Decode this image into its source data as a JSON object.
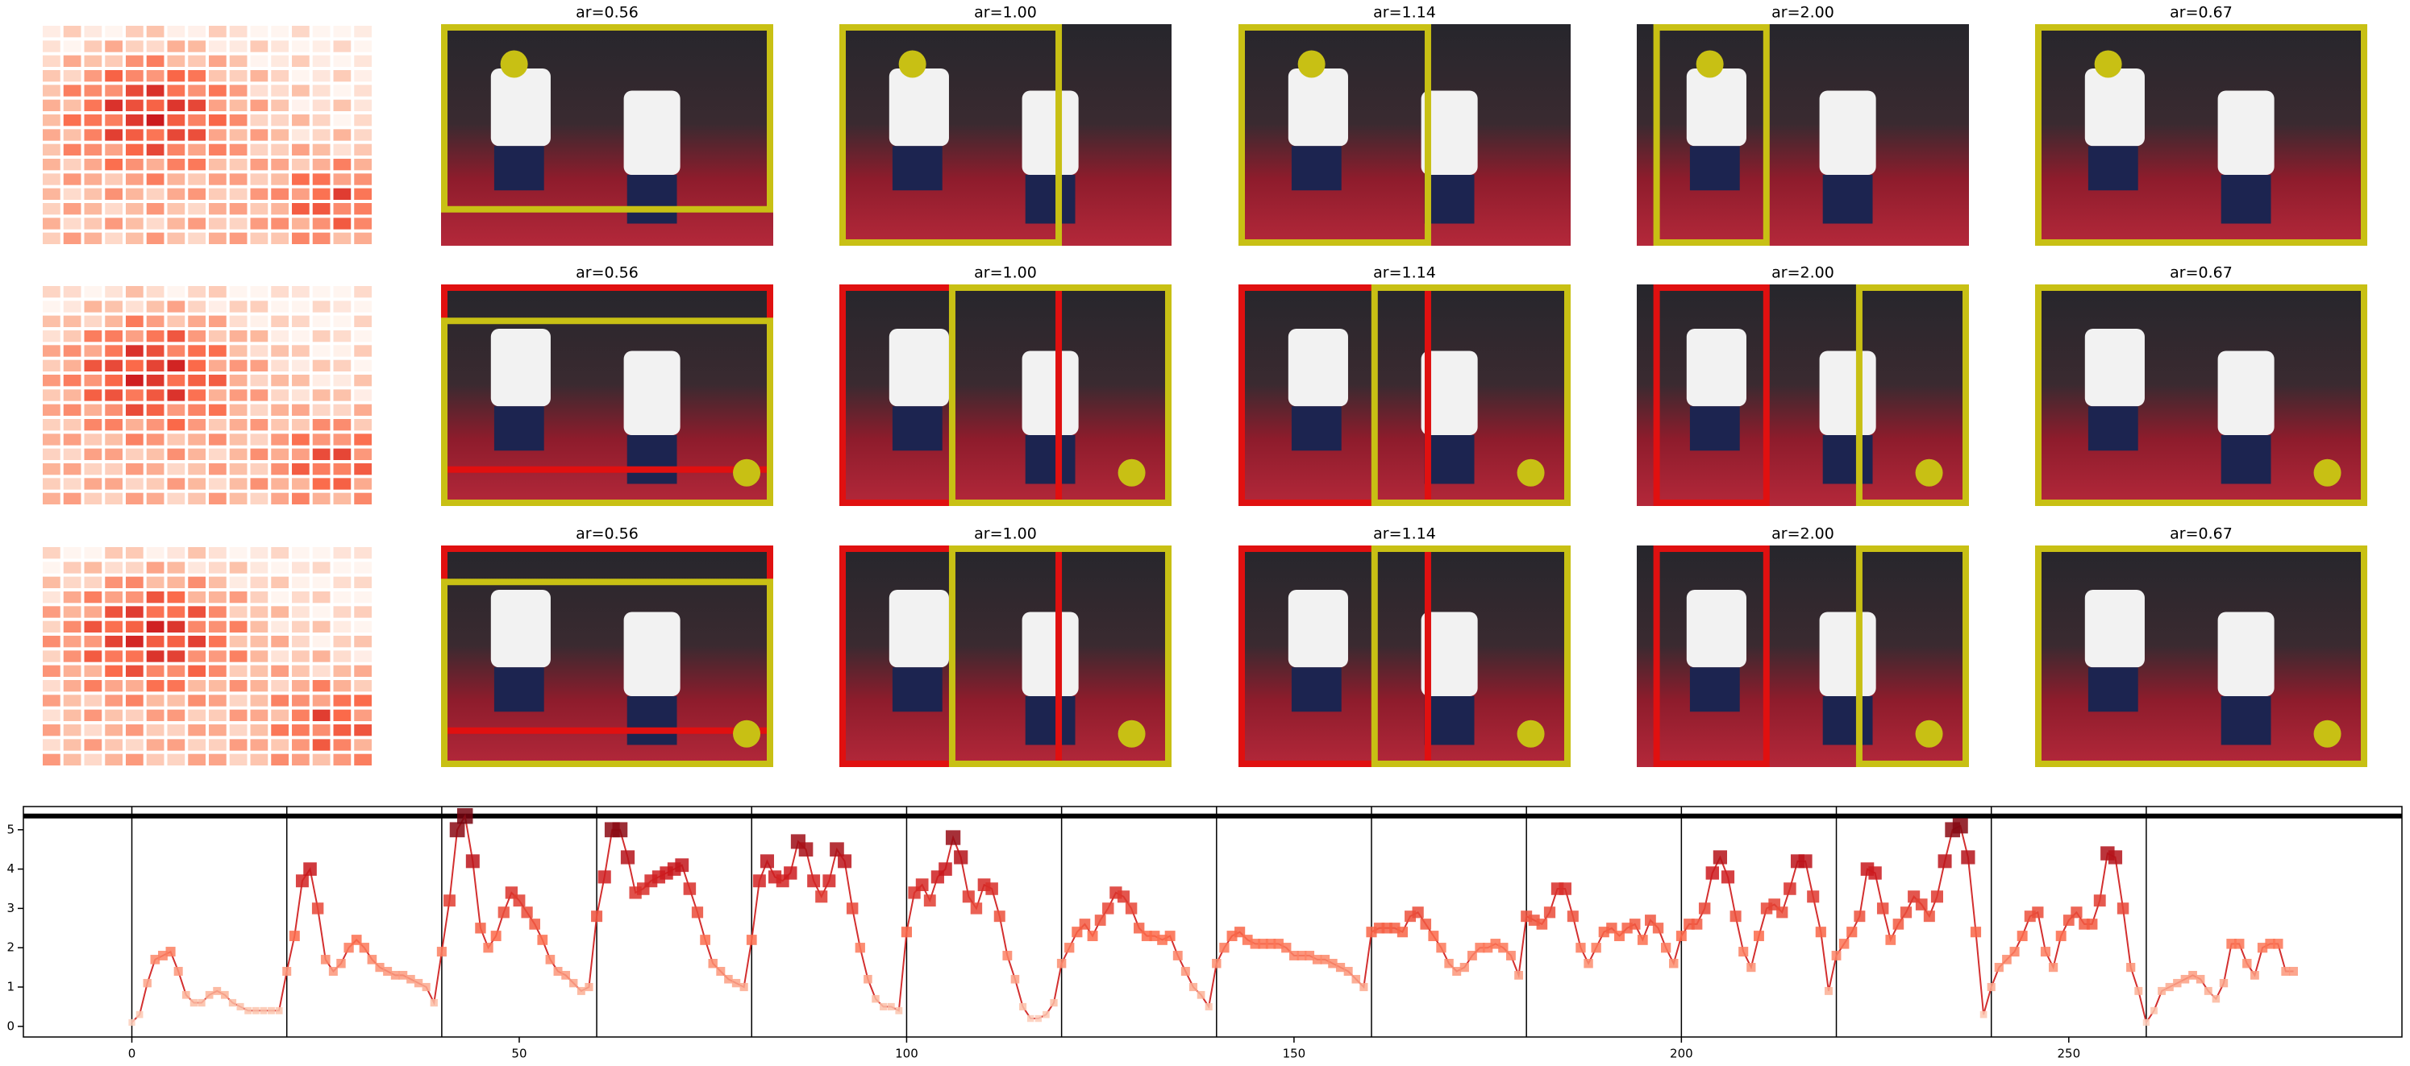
{
  "panels": {
    "titles": [
      [
        "ar=0.56",
        "ar=1.00",
        "ar=1.14",
        "ar=2.00",
        "ar=0.67"
      ],
      [
        "ar=0.56",
        "ar=1.00",
        "ar=1.14",
        "ar=2.00",
        "ar=0.67"
      ],
      [
        "ar=0.56",
        "ar=1.00",
        "ar=1.14",
        "ar=2.00",
        "ar=0.67"
      ]
    ]
  },
  "chart_data": {
    "type": "line",
    "color": "#d32f2f",
    "cmap": "Reds",
    "x": [
      0,
      1,
      2,
      3,
      4,
      5,
      6,
      7,
      8,
      9,
      10,
      11,
      12,
      13,
      14,
      15,
      16,
      17,
      18,
      19,
      20,
      21,
      22,
      23,
      24,
      25,
      26,
      27,
      28,
      29,
      30,
      31,
      32,
      33,
      34,
      35,
      36,
      37,
      38,
      39,
      40,
      41,
      42,
      43,
      44,
      45,
      46,
      47,
      48,
      49,
      50,
      51,
      52,
      53,
      54,
      55,
      56,
      57,
      58,
      59,
      60,
      61,
      62,
      63,
      64,
      65,
      66,
      67,
      68,
      69,
      70,
      71,
      72,
      73,
      74,
      75,
      76,
      77,
      78,
      79,
      80,
      81,
      82,
      83,
      84,
      85,
      86,
      87,
      88,
      89,
      90,
      91,
      92,
      93,
      94,
      95,
      96,
      97,
      98,
      99,
      100,
      101,
      102,
      103,
      104,
      105,
      106,
      107,
      108,
      109,
      110,
      111,
      112,
      113,
      114,
      115,
      116,
      117,
      118,
      119,
      120,
      121,
      122,
      123,
      124,
      125,
      126,
      127,
      128,
      129,
      130,
      131,
      132,
      133,
      134,
      135,
      136,
      137,
      138,
      139,
      140,
      141,
      142,
      143,
      144,
      145,
      146,
      147,
      148,
      149,
      150,
      151,
      152,
      153,
      154,
      155,
      156,
      157,
      158,
      159,
      160,
      161,
      162,
      163,
      164,
      165,
      166,
      167,
      168,
      169,
      170,
      171,
      172,
      173,
      174,
      175,
      176,
      177,
      178,
      179,
      180,
      181,
      182,
      183,
      184,
      185,
      186,
      187,
      188,
      189,
      190,
      191,
      192,
      193,
      194,
      195,
      196,
      197,
      198,
      199,
      200,
      201,
      202,
      203,
      204,
      205,
      206,
      207,
      208,
      209,
      210,
      211,
      212,
      213,
      214,
      215,
      216,
      217,
      218,
      219,
      220,
      221,
      222,
      223,
      224,
      225,
      226,
      227,
      228,
      229,
      230,
      231,
      232,
      233,
      234,
      235,
      236,
      237,
      238,
      239,
      240,
      241,
      242,
      243,
      244,
      245,
      246,
      247,
      248,
      249,
      250,
      251,
      252,
      253,
      254,
      255,
      256,
      257,
      258,
      259,
      260,
      261,
      262,
      263,
      264,
      265,
      266,
      267,
      268,
      269,
      270,
      271,
      272,
      273,
      274,
      275,
      276,
      277,
      278,
      279
    ],
    "values": [
      0.1,
      0.3,
      1.1,
      1.7,
      1.8,
      1.9,
      1.4,
      0.8,
      0.6,
      0.6,
      0.8,
      0.9,
      0.8,
      0.6,
      0.5,
      0.4,
      0.4,
      0.4,
      0.4,
      0.4,
      1.4,
      2.3,
      3.7,
      4.0,
      3.0,
      1.7,
      1.4,
      1.6,
      2.0,
      2.2,
      2.0,
      1.7,
      1.5,
      1.4,
      1.3,
      1.3,
      1.2,
      1.1,
      1.0,
      0.6,
      1.9,
      3.2,
      5.0,
      5.35,
      4.2,
      2.5,
      2.0,
      2.3,
      2.9,
      3.4,
      3.2,
      2.9,
      2.6,
      2.2,
      1.7,
      1.4,
      1.3,
      1.1,
      0.9,
      1.0,
      2.8,
      3.8,
      5.0,
      5.0,
      4.3,
      3.4,
      3.5,
      3.7,
      3.8,
      3.9,
      4.0,
      4.1,
      3.5,
      2.9,
      2.2,
      1.6,
      1.4,
      1.2,
      1.1,
      1.0,
      2.2,
      3.7,
      4.2,
      3.8,
      3.7,
      3.9,
      4.7,
      4.5,
      3.7,
      3.3,
      3.7,
      4.5,
      4.2,
      3.0,
      2.0,
      1.2,
      0.7,
      0.5,
      0.5,
      0.4,
      2.4,
      3.4,
      3.6,
      3.2,
      3.8,
      4.0,
      4.8,
      4.3,
      3.3,
      3.0,
      3.6,
      3.5,
      2.8,
      1.8,
      1.2,
      0.5,
      0.2,
      0.2,
      0.3,
      0.6,
      1.6,
      2.0,
      2.4,
      2.6,
      2.3,
      2.7,
      3.0,
      3.4,
      3.3,
      3.0,
      2.5,
      2.3,
      2.3,
      2.2,
      2.3,
      1.8,
      1.4,
      1.0,
      0.8,
      0.5,
      1.6,
      2.0,
      2.3,
      2.4,
      2.2,
      2.1,
      2.1,
      2.1,
      2.1,
      2.0,
      1.8,
      1.8,
      1.8,
      1.7,
      1.7,
      1.6,
      1.5,
      1.4,
      1.2,
      1.0,
      2.4,
      2.5,
      2.5,
      2.5,
      2.4,
      2.8,
      2.9,
      2.6,
      2.3,
      2.0,
      1.6,
      1.4,
      1.5,
      1.8,
      2.0,
      2.0,
      2.1,
      2.0,
      1.8,
      1.3,
      2.8,
      2.7,
      2.6,
      2.9,
      3.5,
      3.5,
      2.8,
      2.0,
      1.6,
      2.0,
      2.4,
      2.5,
      2.3,
      2.5,
      2.6,
      2.2,
      2.7,
      2.5,
      2.0,
      1.6,
      2.3,
      2.6,
      2.6,
      3.0,
      3.9,
      4.3,
      3.8,
      2.8,
      1.9,
      1.5,
      2.3,
      3.0,
      3.1,
      2.9,
      3.5,
      4.2,
      4.2,
      3.3,
      2.4,
      0.9,
      1.8,
      2.1,
      2.4,
      2.8,
      4.0,
      3.9,
      3.0,
      2.2,
      2.6,
      2.9,
      3.3,
      3.1,
      2.8,
      3.3,
      4.2,
      5.0,
      5.1,
      4.3,
      2.4,
      0.3,
      1.0,
      1.5,
      1.7,
      1.9,
      2.3,
      2.8,
      2.9,
      1.9,
      1.5,
      2.3,
      2.7,
      2.9,
      2.6,
      2.6,
      3.2,
      4.4,
      4.3,
      3.0,
      1.5,
      0.9,
      0.1,
      0.4,
      0.9,
      1.0,
      1.1,
      1.2,
      1.3,
      1.2,
      0.9,
      0.7,
      1.1,
      2.1,
      2.1,
      1.6,
      1.3,
      2.0,
      2.1,
      2.1,
      1.4,
      1.4
    ],
    "xlim": [
      -14,
      293
    ],
    "ylim": [
      -0.27,
      5.59
    ],
    "xticks": [
      0,
      50,
      100,
      150,
      200,
      250
    ],
    "yticks": [
      0,
      1,
      2,
      3,
      4,
      5
    ],
    "vlines": [
      0,
      20,
      40,
      60,
      80,
      100,
      120,
      140,
      160,
      180,
      200,
      220,
      240,
      260
    ],
    "hline": 5.35
  }
}
